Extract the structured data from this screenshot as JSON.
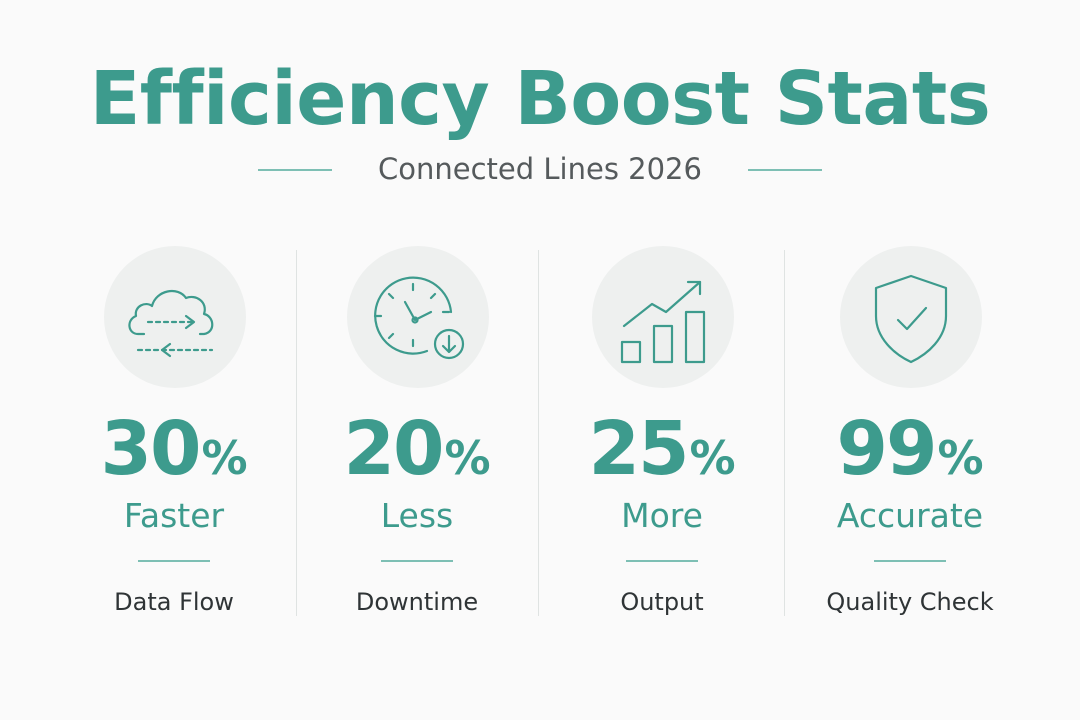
{
  "header": {
    "title": "Efficiency Boost Stats",
    "subtitle": "Connected Lines 2026"
  },
  "colors": {
    "accent": "#3d9b8d",
    "accent_light": "#7dbfb4",
    "text_dark": "#2f3436",
    "circle_bg": "#eef0ef"
  },
  "stats": [
    {
      "icon": "cloud-sync-icon",
      "value": "30",
      "unit": "%",
      "label": "Faster",
      "caption": "Data Flow"
    },
    {
      "icon": "clock-download-icon",
      "value": "20",
      "unit": "%",
      "label": "Less",
      "caption": "Downtime"
    },
    {
      "icon": "growth-chart-icon",
      "value": "25",
      "unit": "%",
      "label": "More",
      "caption": "Output"
    },
    {
      "icon": "shield-check-icon",
      "value": "99",
      "unit": "%",
      "label": "Accurate",
      "caption": "Quality Check"
    }
  ]
}
